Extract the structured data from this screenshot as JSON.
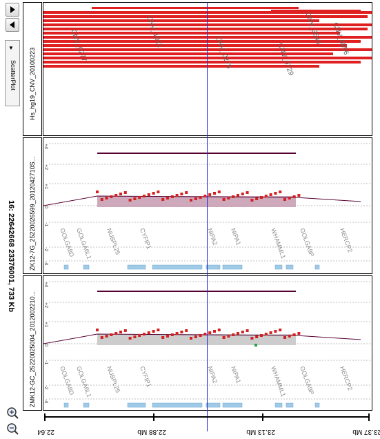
{
  "toolbar": {
    "scroll_down_icon": "triangle-down",
    "scroll_up_icon": "triangle-up",
    "plot_type": "ScatterPlot",
    "zoom_in_icon": "magnifier-plus",
    "zoom_out_icon": "magnifier-minus"
  },
  "region": {
    "title": "16: 22642668 23376001, 733 Kb"
  },
  "tracks": [
    {
      "label": "Hs_hg19_CNV_20100223"
    },
    {
      "label": "ZK12-7G_25220026599_2012042710S..."
    },
    {
      "label": "ZMK12-GC_25220025004_2012002210..."
    }
  ],
  "axis_scale": {
    "ticks": [
      "+4",
      "+2",
      "+1",
      "0",
      "-1",
      "-2",
      "-4"
    ]
  },
  "cnv_labels": [
    "CNV_0277",
    "CNV_0278",
    "CNV_0729",
    "CNV_0856",
    "CNV_1011",
    "CNV_3546"
  ],
  "genes": [
    "GOLGA8D",
    "GOLGA6L1",
    "NUBPL25",
    "CYFIP1",
    "NIPA2",
    "NIPA1",
    "WHAMML1",
    "GOLGA9P",
    "HERCP2"
  ],
  "ruler": {
    "labels": [
      "22.64 Mb",
      "22.88 Mb",
      "23.13 Mb",
      "23.37 Mb"
    ]
  },
  "colors": {
    "cnv_bar": "#e02020",
    "point": "#d42020",
    "segment_fill_1": "#c8a0b4",
    "segment_fill_2": "#c8c8c8",
    "exon": "#9fcbe8",
    "cursor": "#2a2ad8",
    "outlier": "#2aa040"
  }
}
